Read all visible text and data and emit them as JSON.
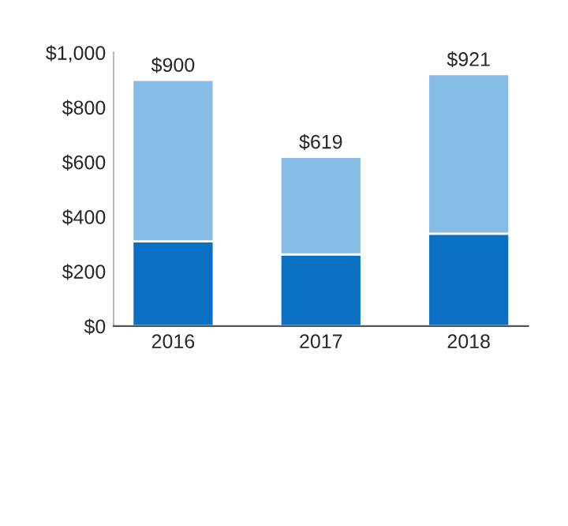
{
  "chart_data": {
    "type": "bar",
    "stacked": true,
    "categories": [
      "2016",
      "2017",
      "2018"
    ],
    "series": [
      {
        "color": "#0a70c4",
        "values": [
          310,
          262,
          338
        ]
      },
      {
        "color": "#86bde6",
        "values": [
          590,
          357,
          583
        ]
      }
    ],
    "totals": [
      "$900",
      "$619",
      "$921"
    ],
    "ylim": [
      0,
      1000
    ],
    "yticks": [
      {
        "value": 0,
        "label": "$0"
      },
      {
        "value": 200,
        "label": "$200"
      },
      {
        "value": 400,
        "label": "$400"
      },
      {
        "value": 600,
        "label": "$600"
      },
      {
        "value": 800,
        "label": "$800"
      },
      {
        "value": 1000,
        "label": "$1,000"
      }
    ],
    "grid": false,
    "legend": false
  }
}
